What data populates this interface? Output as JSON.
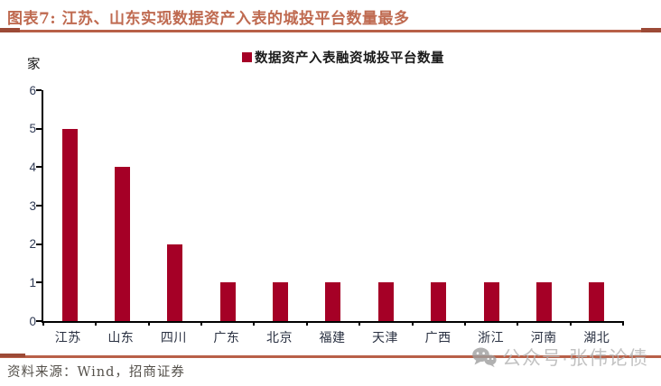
{
  "header": {
    "title": "图表7: 江苏、山东实现数据资产入表的城投平台数量最多"
  },
  "legend": {
    "label": "数据资产入表融资城投平台数量",
    "marker_color": "#A50026"
  },
  "chart_data": {
    "type": "bar",
    "title": "数据资产入表融资城投平台数量",
    "unit_label": "家",
    "categories": [
      "江苏",
      "山东",
      "四川",
      "广东",
      "北京",
      "福建",
      "天津",
      "广西",
      "浙江",
      "河南",
      "湖北"
    ],
    "values": [
      5,
      4,
      2,
      1,
      1,
      1,
      1,
      1,
      1,
      1,
      1
    ],
    "ylim": [
      0,
      6
    ],
    "yticks": [
      0,
      1,
      2,
      3,
      4,
      5,
      6
    ],
    "xlabel": "",
    "ylabel": "家",
    "grid": false,
    "legend_position": "top-center",
    "bar_color": "#A50026"
  },
  "footer": {
    "source": "资料来源：Wind，招商证券"
  },
  "watermark": {
    "icon": "wechat-icon",
    "text": "公众号·张伟论债"
  },
  "colors": {
    "accent_rule": "#B86048",
    "accent_rule_cap": "#9C4A36",
    "title_text": "#BF6A50",
    "bar": "#A50026",
    "axis": "#000000",
    "tick_text": "#2F3A54",
    "watermark_gray": "#B3B3B3"
  }
}
